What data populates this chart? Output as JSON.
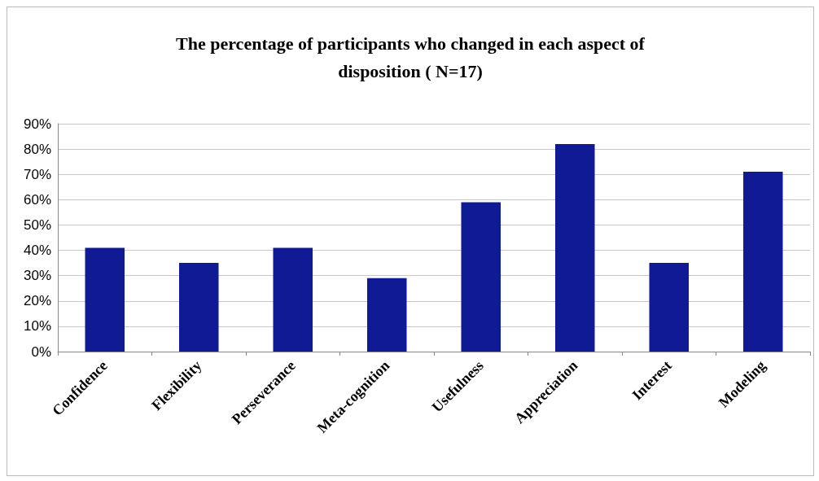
{
  "chart_data": {
    "type": "bar",
    "title": "The percentage of participants who changed in each aspect of\ndisposition ( N=17)",
    "categories": [
      "Confidence",
      "Flexibility",
      "Perseverance",
      "Meta-cognition",
      "Usefulness",
      "Appreciation",
      "Interest",
      "Modeling"
    ],
    "values": [
      41,
      35,
      41,
      29,
      59,
      82,
      35,
      71
    ],
    "color": "#0f1a94",
    "ylim": [
      0,
      90
    ],
    "yticks": [
      {
        "value": 0,
        "label": "0%"
      },
      {
        "value": 10,
        "label": "10%"
      },
      {
        "value": 20,
        "label": "20%"
      },
      {
        "value": 30,
        "label": "30%"
      },
      {
        "value": 40,
        "label": "40%"
      },
      {
        "value": 50,
        "label": "50%"
      },
      {
        "value": 60,
        "label": "60%"
      },
      {
        "value": 70,
        "label": "70%"
      },
      {
        "value": 80,
        "label": "80%"
      },
      {
        "value": 90,
        "label": "90%"
      }
    ],
    "grid": "y"
  }
}
